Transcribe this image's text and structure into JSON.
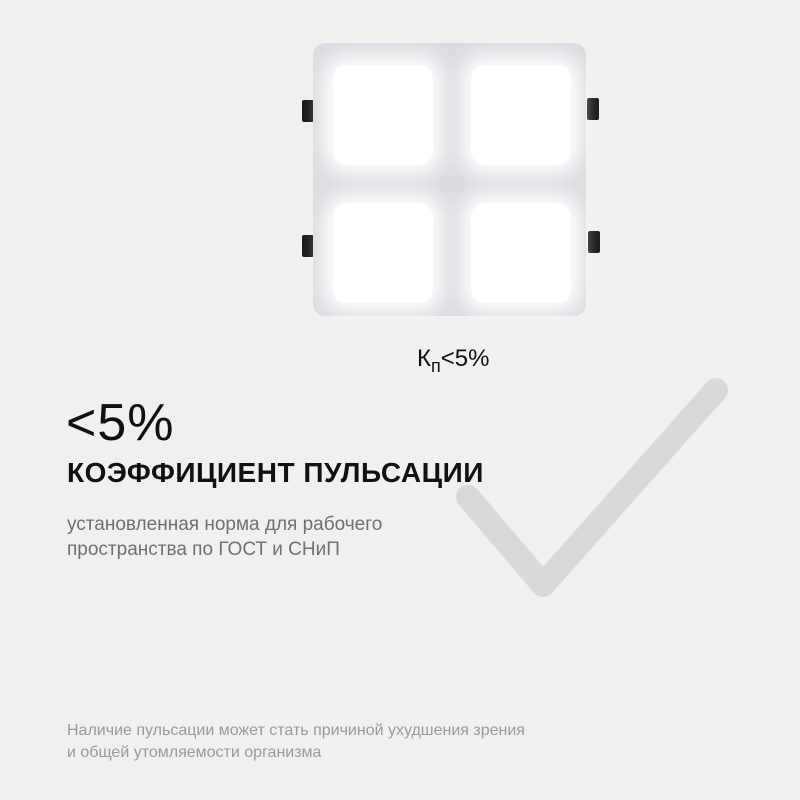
{
  "product": {
    "label_k": "К",
    "label_sub": "п",
    "label_value": "<5%"
  },
  "main": {
    "value": "<5%",
    "heading": "КОЭФФИЦИЕНТ ПУЛЬСАЦИИ",
    "description_line1": "установленная норма для рабочего",
    "description_line2": "пространства по ГОСТ и СНиП"
  },
  "footer": {
    "line1": "Наличие пульсации может стать причиной ухудшения зрения",
    "line2": "и общей утомляемости организма"
  },
  "colors": {
    "background": "#f0f0f0",
    "checkmark": "#d9d9d9",
    "text": "#111111"
  }
}
